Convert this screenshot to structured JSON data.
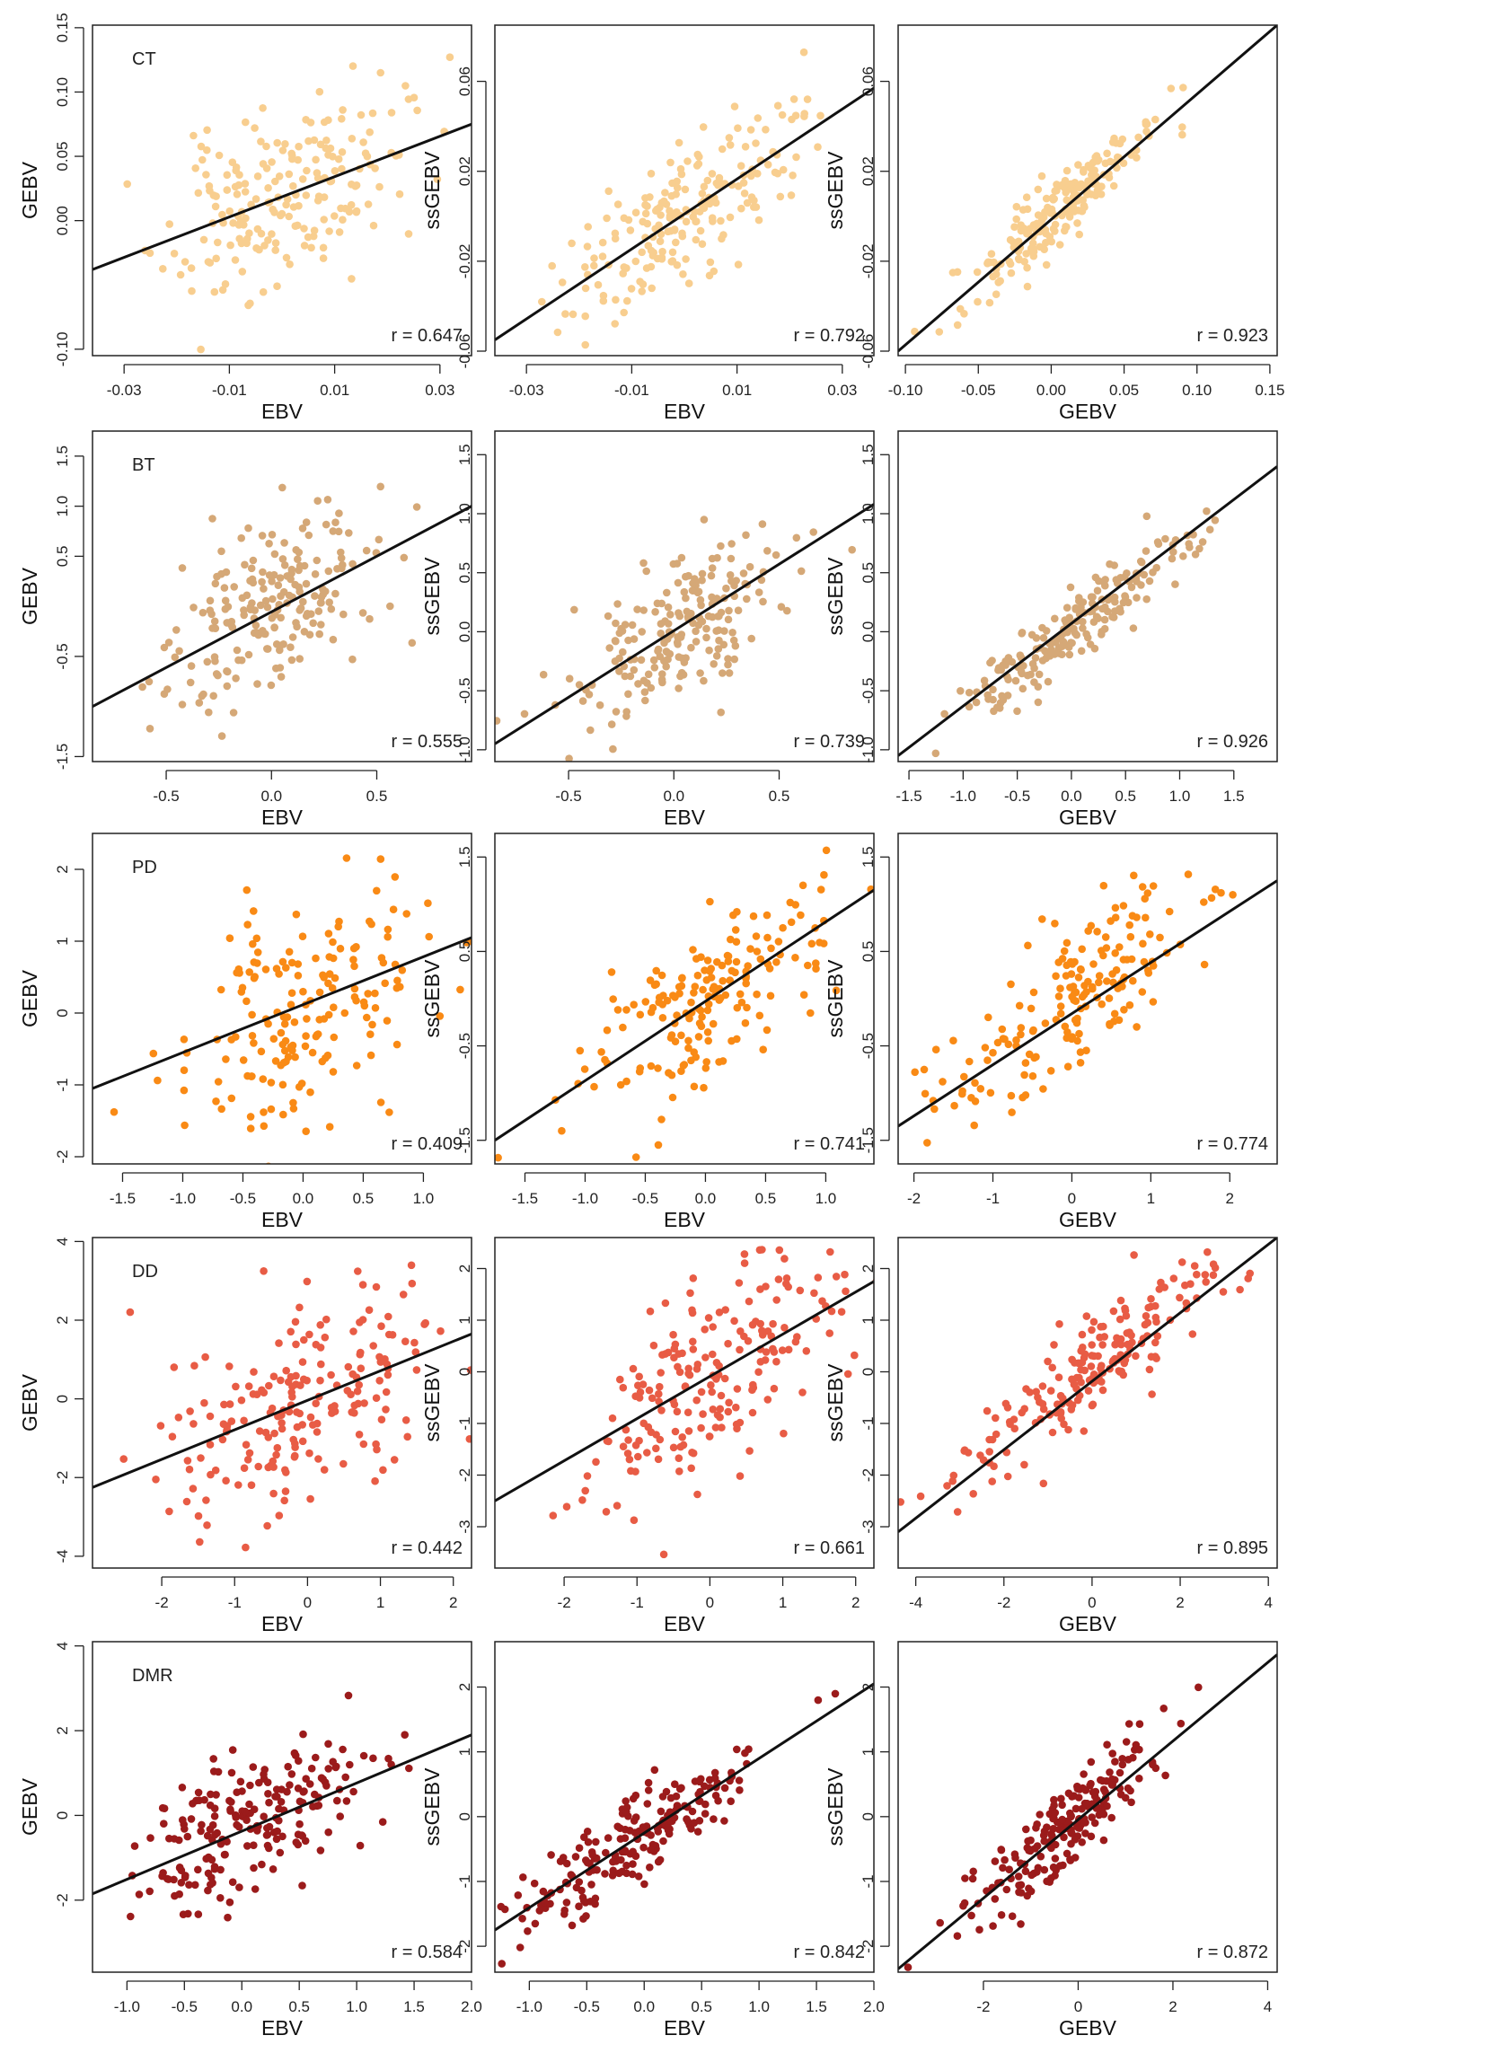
{
  "figure": {
    "traits": [
      {
        "name": "CT",
        "color": "#F8CE8F"
      },
      {
        "name": "BT",
        "color": "#D5A877"
      },
      {
        "name": "PD",
        "color": "#F98A15"
      },
      {
        "name": "DD",
        "color": "#E85C45"
      },
      {
        "name": "DMR",
        "color": "#9B1B1B"
      }
    ]
  },
  "chart_data": [
    {
      "type": "scatter",
      "trait": "CT",
      "color": "#F8CE8F",
      "xlabel": "EBV",
      "ylabel": "GEBV",
      "r_label": "r = 0.647",
      "xlim": [
        -0.036,
        0.036
      ],
      "ylim": [
        -0.105,
        0.152
      ],
      "xticks": [
        -0.03,
        -0.01,
        0.01,
        0.03
      ],
      "yticks": [
        -0.1,
        0.0,
        0.05,
        0.1,
        0.15
      ],
      "xtick_labels": [
        "-0.03",
        "-0.01",
        "0.01",
        "0.03"
      ],
      "ytick_labels": [
        "-0.10",
        "0.00",
        "0.05",
        "0.10",
        "0.15"
      ],
      "fit_line": {
        "x": [
          -0.036,
          0.036
        ],
        "y": [
          -0.038,
          0.075
        ]
      },
      "points": {
        "n": 200,
        "x_mean": 0.0,
        "x_sd": 0.011,
        "slope": 1.57,
        "intercept": 0.018,
        "resid_sd": 0.033,
        "seed": 11,
        "r": 0.647
      }
    },
    {
      "type": "scatter",
      "trait": "CT",
      "color": "#F8CE8F",
      "xlabel": "EBV",
      "ylabel": "ssGEBV",
      "r_label": "r = 0.792",
      "xlim": [
        -0.036,
        0.036
      ],
      "ylim": [
        -0.062,
        0.085
      ],
      "xticks": [
        -0.03,
        -0.01,
        0.01,
        0.03
      ],
      "yticks": [
        -0.06,
        -0.02,
        0.02,
        0.06
      ],
      "xtick_labels": [
        "-0.03",
        "-0.01",
        "0.01",
        "0.03"
      ],
      "ytick_labels": [
        "-0.06",
        "-0.02",
        "0.02",
        "0.06"
      ],
      "fit_line": {
        "x": [
          -0.036,
          0.036
        ],
        "y": [
          -0.055,
          0.057
        ]
      },
      "points": {
        "n": 200,
        "x_mean": 0.0,
        "x_sd": 0.011,
        "slope": 1.55,
        "intercept": 0.001,
        "resid_sd": 0.014,
        "seed": 12,
        "r": 0.792
      }
    },
    {
      "type": "scatter",
      "trait": "CT",
      "color": "#F8CE8F",
      "xlabel": "GEBV",
      "ylabel": "ssGEBV",
      "r_label": "r = 0.923",
      "xlim": [
        -0.105,
        0.155
      ],
      "ylim": [
        -0.062,
        0.085
      ],
      "xticks": [
        -0.1,
        -0.05,
        0.0,
        0.05,
        0.1,
        0.15
      ],
      "yticks": [
        -0.06,
        -0.02,
        0.02,
        0.06
      ],
      "xtick_labels": [
        "-0.10",
        "-0.05",
        "0.00",
        "0.05",
        "0.10",
        "0.15"
      ],
      "ytick_labels": [
        "-0.06",
        "-0.02",
        "0.02",
        "0.06"
      ],
      "fit_line": {
        "x": [
          -0.105,
          0.155
        ],
        "y": [
          -0.06,
          0.085
        ]
      },
      "points": {
        "n": 200,
        "x_mean": 0.0,
        "x_sd": 0.035,
        "slope": 0.56,
        "intercept": 0.0,
        "resid_sd": 0.008,
        "seed": 13,
        "r": 0.923
      }
    },
    {
      "type": "scatter",
      "trait": "BT",
      "color": "#D5A877",
      "xlabel": "EBV",
      "ylabel": "GEBV",
      "r_label": "r = 0.555",
      "xlim": [
        -0.85,
        0.95
      ],
      "ylim": [
        -1.55,
        1.75
      ],
      "xticks": [
        -0.5,
        0.0,
        0.5
      ],
      "yticks": [
        -1.5,
        -0.5,
        0.5,
        1.0,
        1.5
      ],
      "xtick_labels": [
        "-0.5",
        "0.0",
        "0.5"
      ],
      "ytick_labels": [
        "-1.5",
        "-0.5",
        "0.5",
        "1.0",
        "1.5"
      ],
      "fit_line": {
        "x": [
          -0.85,
          0.95
        ],
        "y": [
          -1.0,
          1.0
        ]
      },
      "points": {
        "n": 200,
        "x_mean": 0.0,
        "x_sd": 0.27,
        "slope": 1.11,
        "intercept": 0.0,
        "resid_sd": 0.45,
        "seed": 21,
        "r": 0.555
      }
    },
    {
      "type": "scatter",
      "trait": "BT",
      "color": "#D5A877",
      "xlabel": "EBV",
      "ylabel": "ssGEBV",
      "r_label": "r = 0.739",
      "xlim": [
        -0.85,
        0.95
      ],
      "ylim": [
        -1.1,
        1.7
      ],
      "xticks": [
        -0.5,
        0.0,
        0.5
      ],
      "yticks": [
        -1.0,
        -0.5,
        0.0,
        0.5,
        1.0,
        1.5
      ],
      "xtick_labels": [
        "-0.5",
        "0.0",
        "0.5"
      ],
      "ytick_labels": [
        "-1.0",
        "-0.5",
        "0.0",
        "0.5",
        "1.0",
        "1.5"
      ],
      "fit_line": {
        "x": [
          -0.85,
          0.95
        ],
        "y": [
          -0.95,
          1.08
        ]
      },
      "points": {
        "n": 200,
        "x_mean": 0.0,
        "x_sd": 0.27,
        "slope": 1.13,
        "intercept": 0.0,
        "resid_sd": 0.28,
        "seed": 22,
        "r": 0.739
      }
    },
    {
      "type": "scatter",
      "trait": "BT",
      "color": "#D5A877",
      "xlabel": "GEBV",
      "ylabel": "ssGEBV",
      "r_label": "r = 0.926",
      "xlim": [
        -1.6,
        1.9
      ],
      "ylim": [
        -1.1,
        1.7
      ],
      "xticks": [
        -1.5,
        -1.0,
        -0.5,
        0.0,
        0.5,
        1.0,
        1.5
      ],
      "yticks": [
        -1.0,
        -0.5,
        0.0,
        0.5,
        1.0,
        1.5
      ],
      "xtick_labels": [
        "-1.5",
        "-1.0",
        "-0.5",
        "0.0",
        "0.5",
        "1.0",
        "1.5"
      ],
      "ytick_labels": [
        "-1.0",
        "-0.5",
        "0.0",
        "0.5",
        "1.0",
        "1.5"
      ],
      "fit_line": {
        "x": [
          -1.6,
          1.9
        ],
        "y": [
          -1.05,
          1.4
        ]
      },
      "points": {
        "n": 200,
        "x_mean": 0.0,
        "x_sd": 0.55,
        "slope": 0.7,
        "intercept": 0.0,
        "resid_sd": 0.15,
        "seed": 23,
        "r": 0.926
      }
    },
    {
      "type": "scatter",
      "trait": "PD",
      "color": "#F98A15",
      "xlabel": "EBV",
      "ylabel": "GEBV",
      "r_label": "r = 0.409",
      "xlim": [
        -1.75,
        1.4
      ],
      "ylim": [
        -2.1,
        2.5
      ],
      "xticks": [
        -1.5,
        -1.0,
        -0.5,
        0.0,
        0.5,
        1.0
      ],
      "yticks": [
        -2,
        -1,
        0,
        1,
        2
      ],
      "xtick_labels": [
        "-1.5",
        "-1.0",
        "-0.5",
        "0.0",
        "0.5",
        "1.0"
      ],
      "ytick_labels": [
        "-2",
        "-1",
        "0",
        "1",
        "2"
      ],
      "fit_line": {
        "x": [
          -1.75,
          1.4
        ],
        "y": [
          -1.05,
          1.05
        ]
      },
      "points": {
        "n": 180,
        "x_mean": 0.0,
        "x_sd": 0.55,
        "slope": 0.67,
        "intercept": 0.0,
        "resid_sd": 0.82,
        "seed": 31,
        "r": 0.409
      }
    },
    {
      "type": "scatter",
      "trait": "PD",
      "color": "#F98A15",
      "xlabel": "EBV",
      "ylabel": "ssGEBV",
      "r_label": "r = 0.741",
      "xlim": [
        -1.75,
        1.4
      ],
      "ylim": [
        -1.75,
        1.75
      ],
      "xticks": [
        -1.5,
        -1.0,
        -0.5,
        0.0,
        0.5,
        1.0
      ],
      "yticks": [
        -1.5,
        -0.5,
        0.5,
        1.5
      ],
      "xtick_labels": [
        "-1.5",
        "-1.0",
        "-0.5",
        "0.0",
        "0.5",
        "1.0"
      ],
      "ytick_labels": [
        "-1.5",
        "-0.5",
        "0.5",
        "1.5"
      ],
      "fit_line": {
        "x": [
          -1.75,
          1.4
        ],
        "y": [
          -1.5,
          1.15
        ]
      },
      "points": {
        "n": 180,
        "x_mean": 0.0,
        "x_sd": 0.55,
        "slope": 0.84,
        "intercept": 0.0,
        "resid_sd": 0.42,
        "seed": 32,
        "r": 0.741
      }
    },
    {
      "type": "scatter",
      "trait": "PD",
      "color": "#F98A15",
      "xlabel": "GEBV",
      "ylabel": "ssGEBV",
      "r_label": "r = 0.774",
      "xlim": [
        -2.2,
        2.6
      ],
      "ylim": [
        -1.75,
        1.75
      ],
      "xticks": [
        -2,
        -1,
        0,
        1,
        2
      ],
      "yticks": [
        -1.5,
        -0.5,
        0.5,
        1.5
      ],
      "xtick_labels": [
        "-2",
        "-1",
        "0",
        "1",
        "2"
      ],
      "ytick_labels": [
        "-1.5",
        "-0.5",
        "0.5",
        "1.5"
      ],
      "fit_line": {
        "x": [
          -2.2,
          2.6
        ],
        "y": [
          -1.35,
          1.25
        ]
      },
      "points": {
        "n": 180,
        "x_mean": 0.0,
        "x_sd": 0.9,
        "slope": 0.55,
        "intercept": 0.0,
        "resid_sd": 0.4,
        "seed": 33,
        "r": 0.774
      }
    },
    {
      "type": "scatter",
      "trait": "DD",
      "color": "#E85C45",
      "xlabel": "EBV",
      "ylabel": "GEBV",
      "r_label": "r = 0.442",
      "xlim": [
        -2.95,
        2.25
      ],
      "ylim": [
        -4.3,
        4.1
      ],
      "xticks": [
        -2,
        -1,
        0,
        1,
        2
      ],
      "yticks": [
        -4,
        -2,
        0,
        2,
        4
      ],
      "xtick_labels": [
        "-2",
        "-1",
        "0",
        "1",
        "2"
      ],
      "ytick_labels": [
        "-4",
        "-2",
        "0",
        "2",
        "4"
      ],
      "fit_line": {
        "x": [
          -2.95,
          2.25
        ],
        "y": [
          -2.25,
          1.65
        ]
      },
      "points": {
        "n": 200,
        "x_mean": 0.0,
        "x_sd": 0.95,
        "slope": 0.75,
        "intercept": 0.0,
        "resid_sd": 1.45,
        "seed": 41,
        "r": 0.442
      }
    },
    {
      "type": "scatter",
      "trait": "DD",
      "color": "#E85C45",
      "xlabel": "EBV",
      "ylabel": "ssGEBV",
      "r_label": "r = 0.661",
      "xlim": [
        -2.95,
        2.25
      ],
      "ylim": [
        -3.8,
        2.6
      ],
      "xticks": [
        -2,
        -1,
        0,
        1,
        2
      ],
      "yticks": [
        -3,
        -2,
        -1,
        0,
        1,
        2
      ],
      "xtick_labels": [
        "-2",
        "-1",
        "0",
        "1",
        "2"
      ],
      "ytick_labels": [
        "-3",
        "-2",
        "-1",
        "0",
        "1",
        "2"
      ],
      "fit_line": {
        "x": [
          -2.95,
          2.25
        ],
        "y": [
          -2.5,
          1.75
        ]
      },
      "points": {
        "n": 200,
        "x_mean": 0.0,
        "x_sd": 0.95,
        "slope": 0.82,
        "intercept": 0.0,
        "resid_sd": 0.92,
        "seed": 42,
        "r": 0.661
      }
    },
    {
      "type": "scatter",
      "trait": "DD",
      "color": "#E85C45",
      "xlabel": "GEBV",
      "ylabel": "ssGEBV",
      "r_label": "r = 0.895",
      "xlim": [
        -4.4,
        4.2
      ],
      "ylim": [
        -3.8,
        2.6
      ],
      "xticks": [
        -4,
        -2,
        0,
        2,
        4
      ],
      "yticks": [
        -3,
        -2,
        -1,
        0,
        1,
        2
      ],
      "xtick_labels": [
        "-4",
        "-2",
        "0",
        "2",
        "4"
      ],
      "ytick_labels": [
        "-3",
        "-2",
        "-1",
        "0",
        "1",
        "2"
      ],
      "fit_line": {
        "x": [
          -4.4,
          4.2
        ],
        "y": [
          -3.1,
          2.6
        ]
      },
      "points": {
        "n": 200,
        "x_mean": 0.0,
        "x_sd": 1.5,
        "slope": 0.66,
        "intercept": 0.0,
        "resid_sd": 0.5,
        "seed": 43,
        "r": 0.895
      }
    },
    {
      "type": "scatter",
      "trait": "DMR",
      "color": "#9B1B1B",
      "xlabel": "EBV",
      "ylabel": "GEBV",
      "r_label": "r = 0.584",
      "xlim": [
        -1.3,
        2.0
      ],
      "ylim": [
        -3.7,
        4.1
      ],
      "xticks": [
        -1.0,
        -0.5,
        0.0,
        0.5,
        1.0,
        1.5,
        2.0
      ],
      "yticks": [
        -2,
        0,
        2,
        4
      ],
      "xtick_labels": [
        "-1.0",
        "-0.5",
        "0.0",
        "0.5",
        "1.0",
        "1.5",
        "2.0"
      ],
      "ytick_labels": [
        "-2",
        "0",
        "2",
        "4"
      ],
      "fit_line": {
        "x": [
          -1.3,
          2.0
        ],
        "y": [
          -1.85,
          1.9
        ]
      },
      "points": {
        "n": 200,
        "x_mean": 0.0,
        "x_sd": 0.5,
        "slope": 1.14,
        "intercept": -0.35,
        "resid_sd": 0.8,
        "seed": 51,
        "r": 0.584
      }
    },
    {
      "type": "scatter",
      "trait": "DMR",
      "color": "#9B1B1B",
      "xlabel": "EBV",
      "ylabel": "ssGEBV",
      "r_label": "r = 0.842",
      "xlim": [
        -1.3,
        2.0
      ],
      "ylim": [
        -2.4,
        2.7
      ],
      "xticks": [
        -1.0,
        -0.5,
        0.0,
        0.5,
        1.0,
        1.5,
        2.0
      ],
      "yticks": [
        -2,
        -1,
        0,
        1,
        2
      ],
      "xtick_labels": [
        "-1.0",
        "-0.5",
        "0.0",
        "0.5",
        "1.0",
        "1.5",
        "2.0"
      ],
      "ytick_labels": [
        "-2",
        "-1",
        "0",
        "1",
        "2"
      ],
      "fit_line": {
        "x": [
          -1.3,
          2.0
        ],
        "y": [
          -1.75,
          2.05
        ]
      },
      "points": {
        "n": 200,
        "x_mean": 0.0,
        "x_sd": 0.5,
        "slope": 1.15,
        "intercept": -0.25,
        "resid_sd": 0.36,
        "seed": 52,
        "r": 0.842
      }
    },
    {
      "type": "scatter",
      "trait": "DMR",
      "color": "#9B1B1B",
      "xlabel": "GEBV",
      "ylabel": "ssGEBV",
      "r_label": "r = 0.872",
      "xlim": [
        -3.8,
        4.2
      ],
      "ylim": [
        -2.4,
        2.7
      ],
      "xticks": [
        -2,
        0,
        2,
        4
      ],
      "yticks": [
        -2,
        -1,
        0,
        1,
        2
      ],
      "xtick_labels": [
        "-2",
        "0",
        "2",
        "4"
      ],
      "ytick_labels": [
        "-2",
        "-1",
        "0",
        "1",
        "2"
      ],
      "fit_line": {
        "x": [
          -3.8,
          4.2
        ],
        "y": [
          -2.35,
          2.5
        ]
      },
      "points": {
        "n": 200,
        "x_mean": -0.35,
        "x_sd": 0.95,
        "slope": 0.61,
        "intercept": 0.0,
        "resid_sd": 0.32,
        "seed": 53,
        "r": 0.872
      }
    }
  ]
}
